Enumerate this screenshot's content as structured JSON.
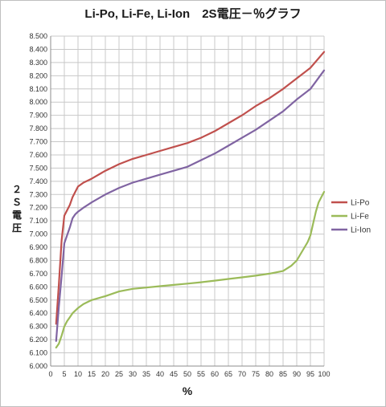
{
  "chart_data": {
    "type": "line",
    "title": "Li-Po, Li-Fe, Li-Ion　2S電圧－％グラフ",
    "xlabel": "%",
    "ylabel": "２Ｓ電圧",
    "xlim": [
      0,
      100
    ],
    "ylim": [
      6.0,
      8.5
    ],
    "grid": true,
    "legend_position": "right",
    "y_tick_labels": [
      "6.000",
      "6.100",
      "6.200",
      "6.300",
      "6.400",
      "6.500",
      "6.600",
      "6.700",
      "6.800",
      "6.900",
      "7.000",
      "7.100",
      "7.200",
      "7.300",
      "7.400",
      "7.500",
      "7.600",
      "7.700",
      "7.800",
      "7.900",
      "8.000",
      "8.100",
      "8.200",
      "8.300",
      "8.400",
      "8.500"
    ],
    "x_tick_labels": [
      "0",
      "5",
      "10",
      "15",
      "20",
      "25",
      "30",
      "35",
      "40",
      "45",
      "50",
      "55",
      "60",
      "65",
      "70",
      "75",
      "80",
      "85",
      "90",
      "95",
      "100"
    ],
    "series": [
      {
        "name": "Li-Po",
        "color": "#c0504d",
        "x": [
          2,
          3,
          4,
          5,
          6,
          7,
          8,
          9,
          10,
          12,
          15,
          20,
          25,
          30,
          35,
          40,
          45,
          50,
          55,
          60,
          65,
          70,
          75,
          80,
          85,
          90,
          95,
          100
        ],
        "y": [
          6.32,
          6.62,
          6.95,
          7.14,
          7.18,
          7.22,
          7.28,
          7.32,
          7.36,
          7.39,
          7.42,
          7.48,
          7.53,
          7.57,
          7.6,
          7.63,
          7.66,
          7.69,
          7.73,
          7.78,
          7.84,
          7.9,
          7.97,
          8.03,
          8.1,
          8.18,
          8.26,
          8.38
        ]
      },
      {
        "name": "Li-Fe",
        "color": "#9bbb59",
        "x": [
          2,
          3,
          4,
          5,
          6,
          7,
          8,
          10,
          12,
          15,
          20,
          25,
          30,
          35,
          40,
          45,
          50,
          55,
          60,
          65,
          70,
          75,
          80,
          85,
          88,
          90,
          92,
          94,
          95,
          96,
          97,
          98,
          100
        ],
        "y": [
          6.14,
          6.17,
          6.23,
          6.3,
          6.34,
          6.37,
          6.4,
          6.44,
          6.47,
          6.5,
          6.53,
          6.565,
          6.585,
          6.595,
          6.605,
          6.615,
          6.625,
          6.635,
          6.647,
          6.66,
          6.672,
          6.685,
          6.7,
          6.72,
          6.76,
          6.8,
          6.87,
          6.94,
          6.99,
          7.08,
          7.17,
          7.24,
          7.32
        ]
      },
      {
        "name": "Li-Ion",
        "color": "#8064a2",
        "x": [
          2,
          3,
          4,
          5,
          6,
          7,
          8,
          9,
          10,
          12,
          15,
          20,
          25,
          30,
          35,
          40,
          45,
          50,
          55,
          60,
          65,
          70,
          75,
          80,
          85,
          90,
          95,
          100
        ],
        "y": [
          6.19,
          6.45,
          6.68,
          6.93,
          6.99,
          7.05,
          7.12,
          7.15,
          7.17,
          7.2,
          7.24,
          7.3,
          7.35,
          7.39,
          7.42,
          7.45,
          7.48,
          7.51,
          7.56,
          7.61,
          7.67,
          7.73,
          7.79,
          7.86,
          7.93,
          8.02,
          8.1,
          8.24
        ]
      }
    ]
  }
}
